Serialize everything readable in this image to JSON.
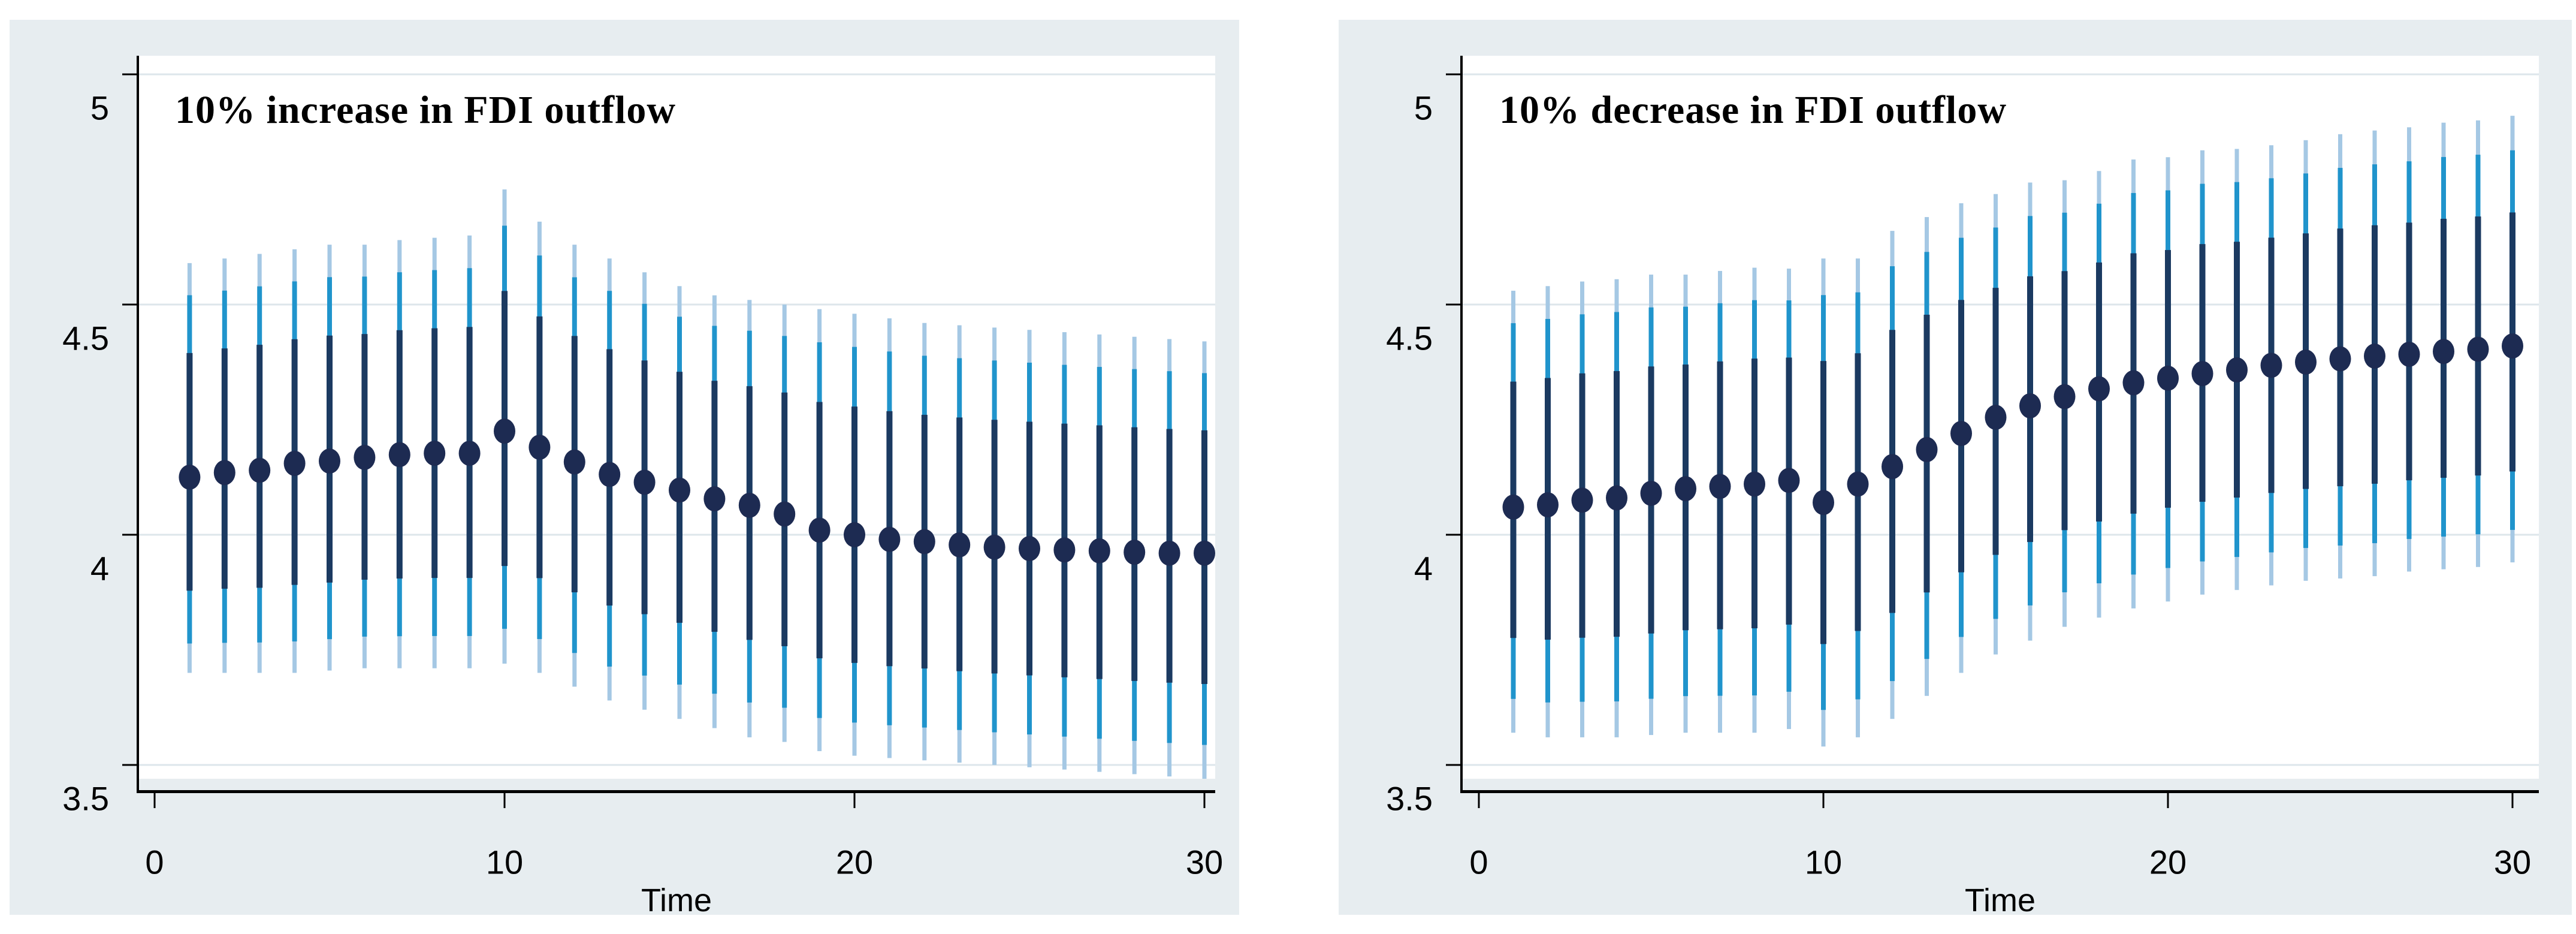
{
  "page": {
    "background": "#ffffff"
  },
  "colors": {
    "figure_background": "#e7edf0",
    "plot_background": "#ffffff",
    "gridline": "#dde6eb",
    "axis": "#000000",
    "ci_outer": "#a5c8e4",
    "ci_middle": "#2094cc",
    "ci_inner": "#1b3a61",
    "point_marker": "#1d2b52",
    "text": "#000000"
  },
  "chart_data": [
    {
      "type": "scatter",
      "title": "10% increase in FDI outflow",
      "xlabel": "Time",
      "ylabel": "",
      "ylim": [
        3.46,
        5.04
      ],
      "xticks": [
        0,
        10,
        20,
        30
      ],
      "yticks": [
        3.5,
        4,
        4.5,
        5
      ],
      "ytick_labels": [
        "3.5",
        "4",
        "4.5",
        "5"
      ],
      "xtick_labels": [
        "0",
        "10",
        "20",
        "30"
      ],
      "grid": true,
      "legend": "none",
      "x": [
        1,
        2,
        3,
        4,
        5,
        6,
        7,
        8,
        9,
        10,
        11,
        12,
        13,
        14,
        15,
        16,
        17,
        18,
        19,
        20,
        21,
        22,
        23,
        24,
        25,
        26,
        27,
        28,
        29,
        30
      ],
      "series": [
        {
          "name": "point_estimate",
          "values": [
            4.125,
            4.135,
            4.14,
            4.155,
            4.16,
            4.168,
            4.174,
            4.177,
            4.177,
            4.225,
            4.19,
            4.158,
            4.131,
            4.114,
            4.097,
            4.078,
            4.064,
            4.045,
            4.01,
            4.0,
            3.99,
            3.985,
            3.978,
            3.973,
            3.97,
            3.967,
            3.965,
            3.962,
            3.96,
            3.96
          ]
        },
        {
          "name": "ci_upper_bound",
          "values": [
            4.59,
            4.6,
            4.61,
            4.62,
            4.63,
            4.63,
            4.64,
            4.645,
            4.65,
            4.75,
            4.68,
            4.63,
            4.6,
            4.57,
            4.54,
            4.52,
            4.51,
            4.5,
            4.49,
            4.48,
            4.47,
            4.46,
            4.455,
            4.45,
            4.445,
            4.44,
            4.435,
            4.43,
            4.425,
            4.42
          ]
        },
        {
          "name": "ci_lower_bound",
          "values": [
            3.7,
            3.7,
            3.7,
            3.7,
            3.705,
            3.71,
            3.71,
            3.71,
            3.71,
            3.72,
            3.7,
            3.67,
            3.64,
            3.62,
            3.6,
            3.58,
            3.56,
            3.55,
            3.53,
            3.52,
            3.515,
            3.51,
            3.505,
            3.5,
            3.495,
            3.49,
            3.485,
            3.48,
            3.475,
            3.47
          ]
        }
      ]
    },
    {
      "type": "scatter",
      "title": "10% decrease in FDI outflow",
      "xlabel": "Time",
      "ylabel": "",
      "ylim": [
        3.46,
        5.04
      ],
      "xticks": [
        0,
        10,
        20,
        30
      ],
      "yticks": [
        3.5,
        4,
        4.5,
        5
      ],
      "ytick_labels": [
        "3.5",
        "4",
        "4.5",
        "5"
      ],
      "xtick_labels": [
        "0",
        "10",
        "20",
        "30"
      ],
      "grid": true,
      "legend": "none",
      "x": [
        1,
        2,
        3,
        4,
        5,
        6,
        7,
        8,
        9,
        10,
        11,
        12,
        13,
        14,
        15,
        16,
        17,
        18,
        19,
        20,
        21,
        22,
        23,
        24,
        25,
        26,
        27,
        28,
        29,
        30
      ],
      "series": [
        {
          "name": "point_estimate",
          "values": [
            4.06,
            4.065,
            4.075,
            4.08,
            4.09,
            4.1,
            4.105,
            4.11,
            4.118,
            4.07,
            4.11,
            4.148,
            4.185,
            4.22,
            4.255,
            4.28,
            4.3,
            4.317,
            4.33,
            4.34,
            4.35,
            4.358,
            4.368,
            4.375,
            4.382,
            4.388,
            4.392,
            4.398,
            4.403,
            4.41
          ]
        },
        {
          "name": "ci_upper_bound",
          "values": [
            4.53,
            4.54,
            4.55,
            4.555,
            4.565,
            4.565,
            4.573,
            4.58,
            4.578,
            4.6,
            4.6,
            4.66,
            4.69,
            4.72,
            4.74,
            4.765,
            4.77,
            4.79,
            4.815,
            4.82,
            4.835,
            4.838,
            4.846,
            4.857,
            4.87,
            4.878,
            4.885,
            4.895,
            4.9,
            4.91
          ]
        },
        {
          "name": "ci_lower_bound",
          "values": [
            3.57,
            3.56,
            3.56,
            3.56,
            3.565,
            3.57,
            3.57,
            3.57,
            3.578,
            3.54,
            3.56,
            3.6,
            3.65,
            3.7,
            3.74,
            3.77,
            3.8,
            3.82,
            3.84,
            3.855,
            3.87,
            3.88,
            3.89,
            3.9,
            3.905,
            3.91,
            3.92,
            3.925,
            3.93,
            3.94
          ]
        }
      ]
    }
  ]
}
